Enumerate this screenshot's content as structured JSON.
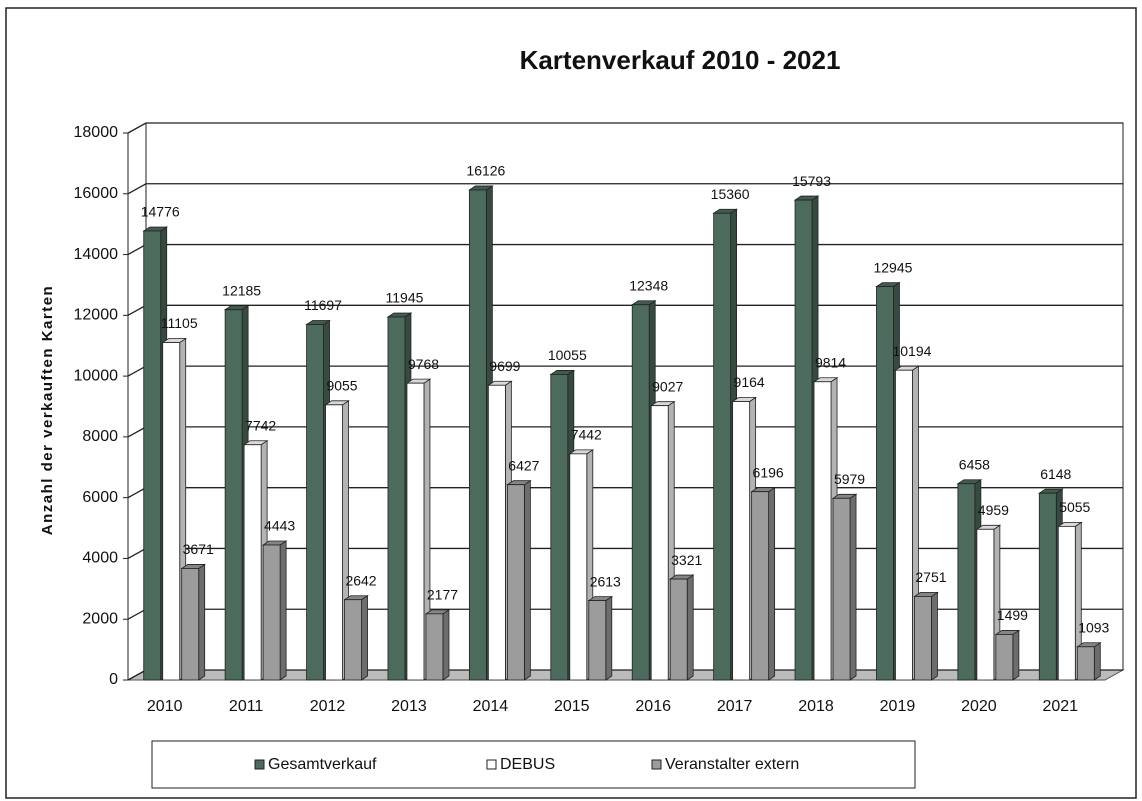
{
  "chart_data": {
    "type": "bar3d",
    "title": "Kartenverkauf 2010 - 2021",
    "y_label": "Anzahl der verkauften Karten",
    "categories": [
      "2010",
      "2011",
      "2012",
      "2013",
      "2014",
      "2015",
      "2016",
      "2017",
      "2018",
      "2019",
      "2020",
      "2021"
    ],
    "series": [
      {
        "name": "Gesamtverkauf",
        "color": "#4d6b5c",
        "values": [
          14776,
          12185,
          11697,
          11945,
          16126,
          10055,
          12348,
          15360,
          15793,
          12945,
          6458,
          6148
        ]
      },
      {
        "name": "DEBUS",
        "color": "#ffffff",
        "values": [
          11105,
          7742,
          9055,
          9768,
          9699,
          7442,
          9027,
          9164,
          9814,
          10194,
          4959,
          5055
        ]
      },
      {
        "name": "Veranstalter extern",
        "color": "#9c9c9c",
        "values": [
          3671,
          4443,
          2642,
          2177,
          6427,
          2613,
          3321,
          6196,
          5979,
          2751,
          1499,
          1093
        ]
      }
    ],
    "ylim": [
      0,
      18000
    ],
    "yticks": [
      0,
      2000,
      4000,
      6000,
      8000,
      10000,
      12000,
      14000,
      16000,
      18000
    ],
    "grid": true,
    "legend": "bottom"
  }
}
